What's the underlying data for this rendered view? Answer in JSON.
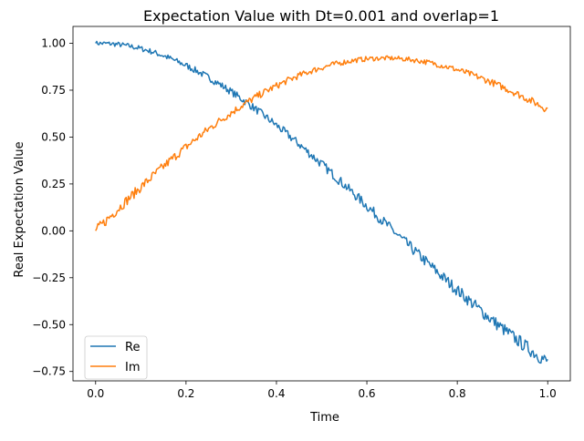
{
  "chart_data": {
    "type": "line",
    "title": "Expectation Value with Dt=0.001 and overlap=1",
    "xlabel": "Time",
    "ylabel": "Real Expectation Value",
    "xlim": [
      -0.05,
      1.05
    ],
    "ylim": [
      -0.8,
      1.09
    ],
    "x_ticks": [
      0.0,
      0.2,
      0.4,
      0.6,
      0.8,
      1.0
    ],
    "x_tick_labels": [
      "0.0",
      "0.2",
      "0.4",
      "0.6",
      "0.8",
      "1.0"
    ],
    "y_ticks": [
      -0.75,
      -0.5,
      -0.25,
      0.0,
      0.25,
      0.5,
      0.75,
      1.0
    ],
    "y_tick_labels": [
      "−0.75",
      "−0.50",
      "−0.25",
      "0.00",
      "0.25",
      "0.50",
      "0.75",
      "1.00"
    ],
    "grid": false,
    "legend_position": "lower-left",
    "x": [
      0.0,
      0.025,
      0.05,
      0.075,
      0.1,
      0.125,
      0.15,
      0.175,
      0.2,
      0.225,
      0.25,
      0.275,
      0.3,
      0.325,
      0.35,
      0.375,
      0.4,
      0.425,
      0.45,
      0.475,
      0.5,
      0.525,
      0.55,
      0.575,
      0.6,
      0.625,
      0.65,
      0.675,
      0.7,
      0.725,
      0.75,
      0.775,
      0.8,
      0.825,
      0.85,
      0.875,
      0.9,
      0.925,
      0.95,
      0.975,
      1.0
    ],
    "series": [
      {
        "name": "Re",
        "color": "#1f77b4",
        "values": [
          1.0,
          0.999,
          0.994,
          0.985,
          0.972,
          0.955,
          0.934,
          0.909,
          0.882,
          0.851,
          0.817,
          0.781,
          0.742,
          0.7,
          0.656,
          0.61,
          0.563,
          0.513,
          0.462,
          0.409,
          0.356,
          0.301,
          0.245,
          0.189,
          0.133,
          0.076,
          0.019,
          -0.038,
          -0.095,
          -0.151,
          -0.207,
          -0.262,
          -0.316,
          -0.369,
          -0.421,
          -0.472,
          -0.521,
          -0.568,
          -0.614,
          -0.658,
          -0.7
        ]
      },
      {
        "name": "Im",
        "color": "#ff7f0e",
        "values": [
          0.0,
          0.059,
          0.118,
          0.176,
          0.233,
          0.289,
          0.343,
          0.396,
          0.447,
          0.496,
          0.543,
          0.588,
          0.63,
          0.67,
          0.707,
          0.742,
          0.773,
          0.802,
          0.828,
          0.851,
          0.87,
          0.887,
          0.9,
          0.91,
          0.917,
          0.92,
          0.921,
          0.918,
          0.912,
          0.903,
          0.891,
          0.876,
          0.859,
          0.839,
          0.817,
          0.793,
          0.767,
          0.739,
          0.71,
          0.679,
          0.647
        ]
      }
    ]
  }
}
